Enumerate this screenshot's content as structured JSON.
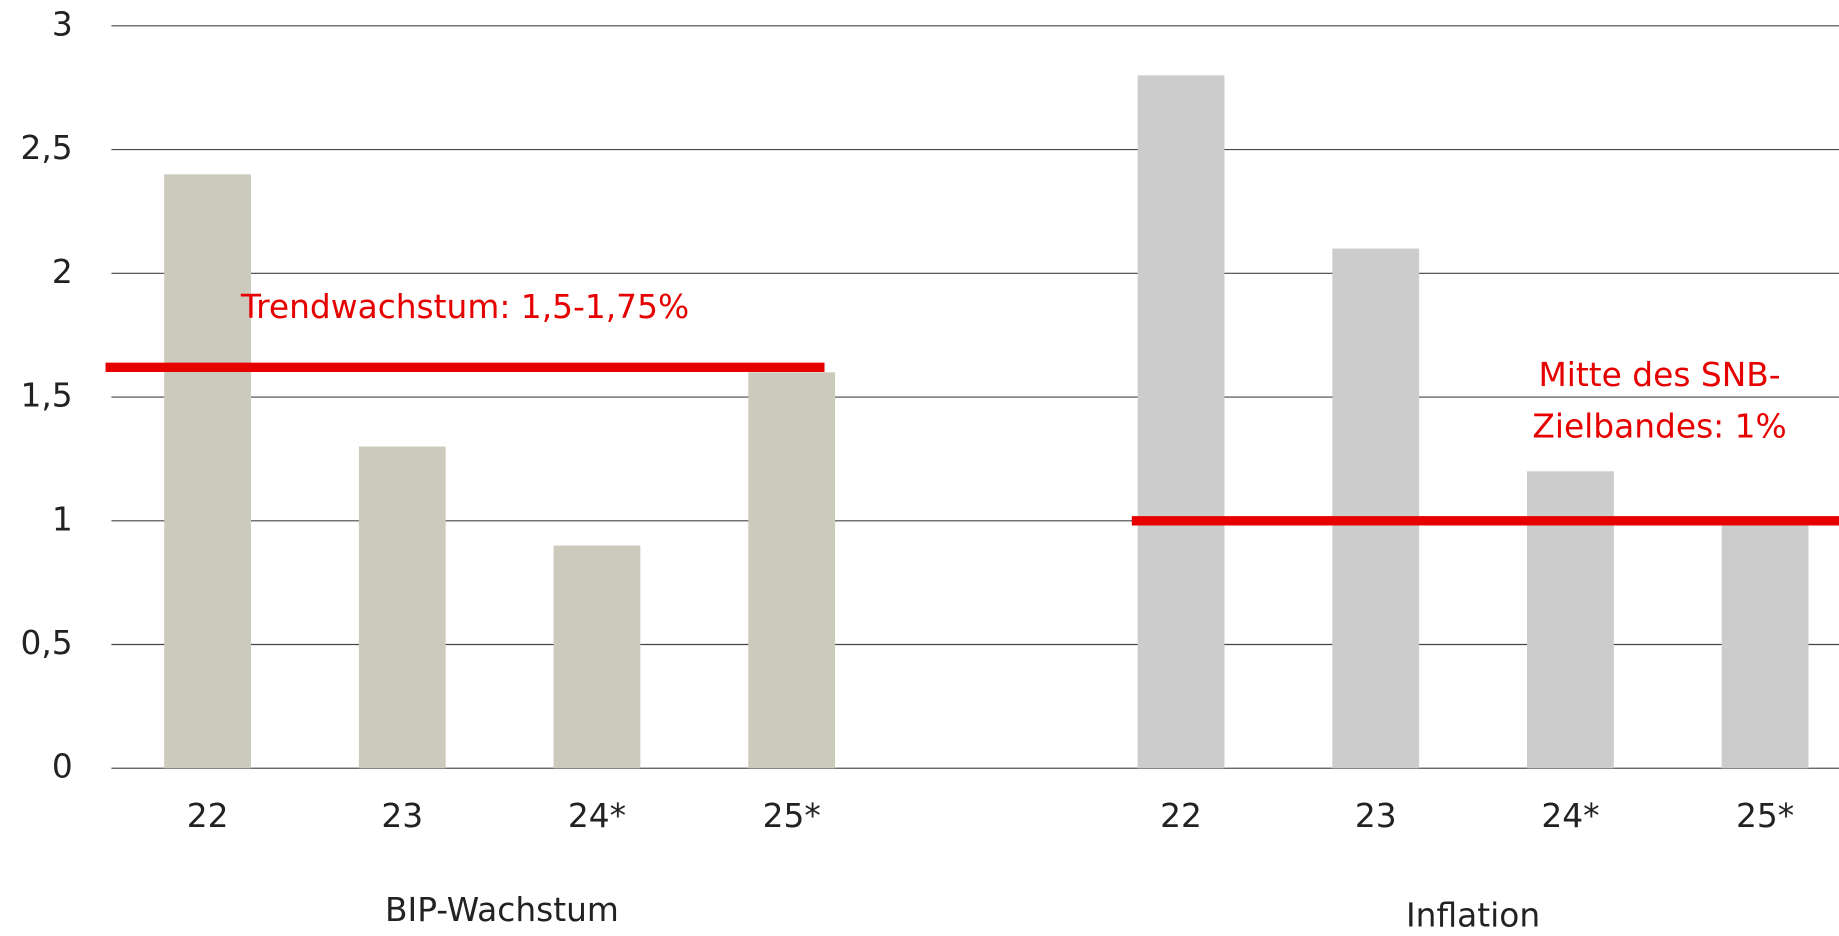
{
  "chart_data": {
    "type": "grouped_bar",
    "groups": [
      {
        "name": "BIP-Wachstum",
        "color": "#cccabd",
        "categories": [
          "22",
          "23",
          "24*",
          "25*"
        ],
        "values": [
          2.4,
          1.3,
          0.9,
          1.6
        ]
      },
      {
        "name": "Inflation",
        "color": "#cccccc",
        "categories": [
          "22",
          "23",
          "24*",
          "25*"
        ],
        "values": [
          2.8,
          2.1,
          1.2,
          1.0
        ]
      }
    ],
    "reference_lines": [
      {
        "group": 0,
        "value": 1.62,
        "color": "#e60000",
        "label": [
          "Trendwachstum: 1,5-1,75%"
        ]
      },
      {
        "group": 1,
        "value": 1.0,
        "color": "#e60000",
        "label": [
          "Mitte des SNB-",
          "Zielbandes: 1%"
        ]
      }
    ],
    "ylim": [
      0,
      3
    ],
    "yticks": [
      0,
      {
        "value": 0.5,
        "label": "0,5"
      },
      1,
      {
        "value": 1.5,
        "label": "1,5"
      },
      2,
      {
        "value": 2.5,
        "label": "2,5"
      },
      3
    ],
    "grid": true
  }
}
